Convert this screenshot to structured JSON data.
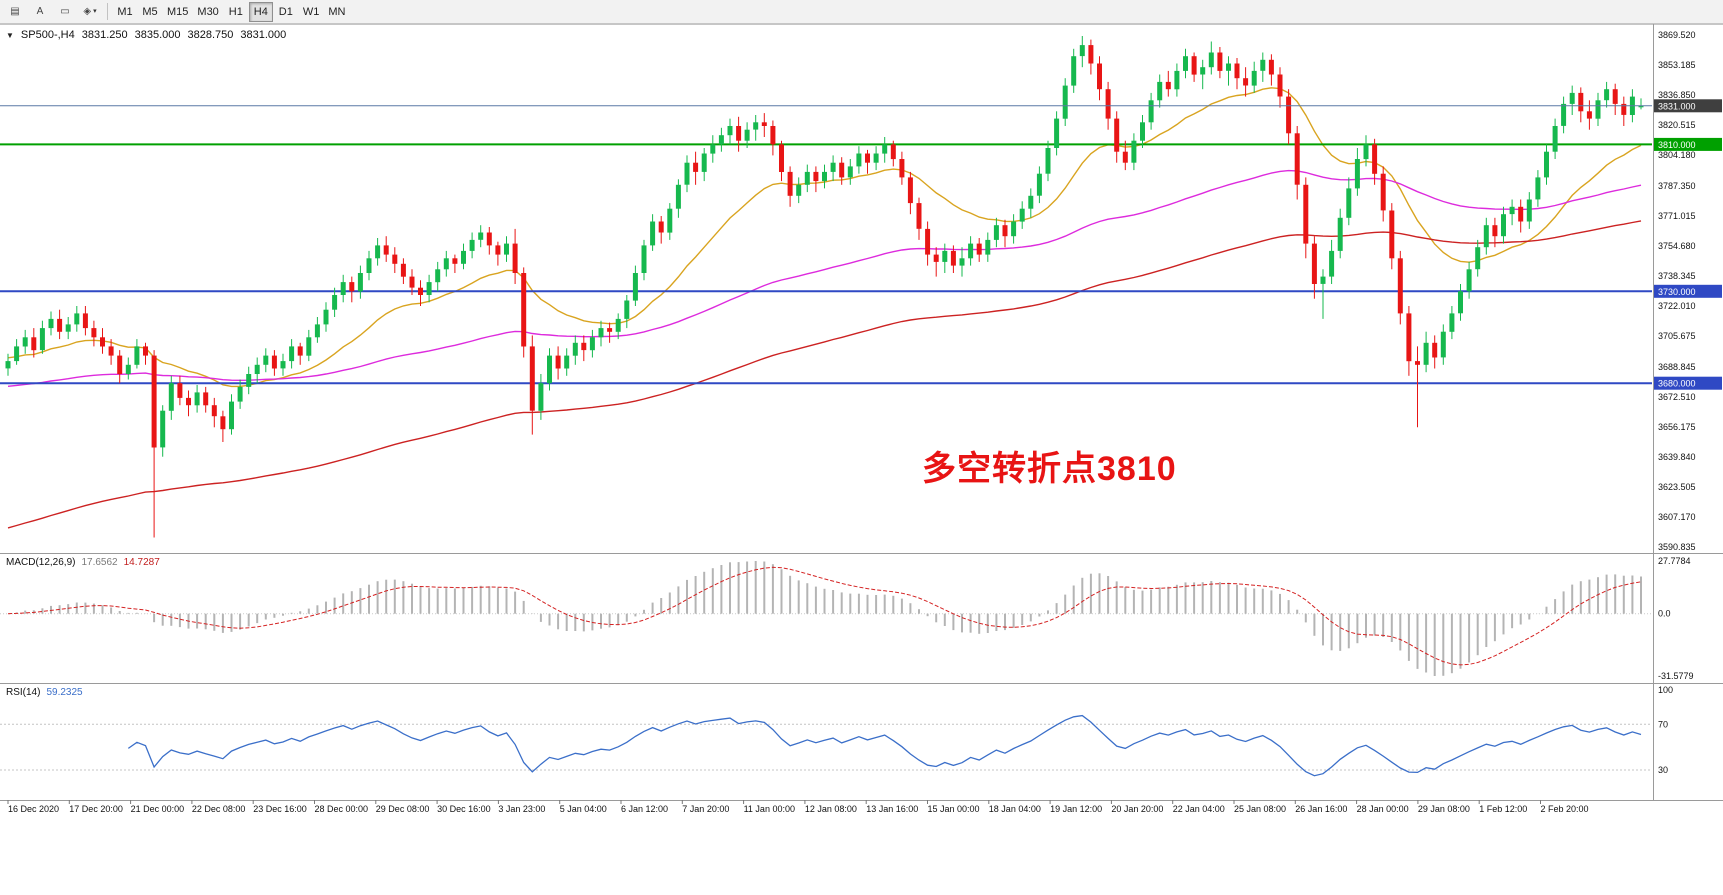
{
  "toolbar": {
    "icon_buttons": [
      {
        "name": "chart-window-icon",
        "glyph": "▤"
      },
      {
        "name": "text-tool-icon",
        "glyph": "A"
      },
      {
        "name": "frame-tool-icon",
        "glyph": "▭"
      },
      {
        "name": "objects-tool-icon",
        "glyph": "◈",
        "arrow": true
      }
    ],
    "dropdown_arrow": "▾",
    "timeframes": [
      "M1",
      "M5",
      "M15",
      "M30",
      "H1",
      "H4",
      "D1",
      "W1",
      "MN"
    ],
    "active_timeframe": "H4"
  },
  "chart_header": {
    "marker": "▼",
    "symbol_period": "SP500-,H4",
    "open": "3831.250",
    "high": "3835.000",
    "low": "3828.750",
    "close": "3831.000"
  },
  "annotation": {
    "text": "多空转折点3810",
    "color": "#e81414"
  },
  "chart_data": {
    "type": "candlestick",
    "symbol": "SP500-",
    "timeframe": "H4",
    "up_color": "#16b84e",
    "down_color": "#e81515",
    "price_axis_labels": [
      "3869.520",
      "3853.185",
      "3836.850",
      "3820.515",
      "3804.180",
      "3787.350",
      "3771.015",
      "3754.680",
      "3738.345",
      "3722.010",
      "3705.675",
      "3688.845",
      "3672.510",
      "3656.175",
      "3639.840",
      "3623.505",
      "3607.170",
      "3590.835"
    ],
    "price_range": {
      "axis_top_price": 3869.52,
      "axis_bottom_price": 3590.835
    },
    "bid": {
      "label": "3831.000",
      "price": 3831.0,
      "line_color": "#5a79a5",
      "badge_color": "#3f3f3f"
    },
    "hlines": [
      {
        "label": "3810.000",
        "price": 3810.0,
        "color": "#00a000",
        "width": 2
      },
      {
        "label": "3730.000",
        "price": 3730.0,
        "color": "#2f49c4",
        "width": 2
      },
      {
        "label": "3680.000",
        "price": 3680.0,
        "color": "#2f49c4",
        "width": 2
      }
    ],
    "moving_averages": [
      {
        "name": "ma-fast-orange",
        "period": 20,
        "seed": 3694,
        "color": "#d9a420"
      },
      {
        "name": "ma-medium-magenta",
        "period": 90,
        "seed": 3678,
        "color": "#dd2bdd"
      },
      {
        "name": "ma-slow-red",
        "period": 150,
        "seed": 3600,
        "color": "#cc2222"
      }
    ],
    "candles": [
      [
        3688,
        3696,
        3684,
        3692
      ],
      [
        3692,
        3704,
        3690,
        3700
      ],
      [
        3700,
        3709,
        3696,
        3705
      ],
      [
        3705,
        3710,
        3694,
        3698
      ],
      [
        3698,
        3714,
        3696,
        3710
      ],
      [
        3710,
        3719,
        3706,
        3715
      ],
      [
        3715,
        3720,
        3704,
        3708
      ],
      [
        3708,
        3716,
        3704,
        3712
      ],
      [
        3712,
        3722,
        3708,
        3718
      ],
      [
        3718,
        3722,
        3706,
        3710
      ],
      [
        3710,
        3714,
        3700,
        3705
      ],
      [
        3705,
        3710,
        3696,
        3700
      ],
      [
        3700,
        3704,
        3690,
        3695
      ],
      [
        3695,
        3698,
        3680,
        3685
      ],
      [
        3685,
        3694,
        3682,
        3690
      ],
      [
        3690,
        3704,
        3688,
        3700
      ],
      [
        3700,
        3702,
        3690,
        3695
      ],
      [
        3695,
        3698,
        3596,
        3645
      ],
      [
        3645,
        3668,
        3640,
        3665
      ],
      [
        3665,
        3684,
        3660,
        3680
      ],
      [
        3680,
        3684,
        3668,
        3672
      ],
      [
        3672,
        3676,
        3662,
        3668
      ],
      [
        3668,
        3679,
        3664,
        3675
      ],
      [
        3675,
        3678,
        3664,
        3668
      ],
      [
        3668,
        3672,
        3656,
        3662
      ],
      [
        3662,
        3665,
        3648,
        3655
      ],
      [
        3655,
        3674,
        3652,
        3670
      ],
      [
        3670,
        3682,
        3666,
        3678
      ],
      [
        3678,
        3689,
        3674,
        3685
      ],
      [
        3685,
        3694,
        3680,
        3690
      ],
      [
        3690,
        3699,
        3686,
        3695
      ],
      [
        3695,
        3698,
        3684,
        3688
      ],
      [
        3688,
        3696,
        3684,
        3692
      ],
      [
        3692,
        3704,
        3688,
        3700
      ],
      [
        3700,
        3702,
        3690,
        3695
      ],
      [
        3695,
        3709,
        3692,
        3705
      ],
      [
        3705,
        3716,
        3702,
        3712
      ],
      [
        3712,
        3724,
        3708,
        3720
      ],
      [
        3720,
        3732,
        3716,
        3728
      ],
      [
        3728,
        3739,
        3724,
        3735
      ],
      [
        3735,
        3738,
        3724,
        3730
      ],
      [
        3730,
        3744,
        3726,
        3740
      ],
      [
        3740,
        3752,
        3736,
        3748
      ],
      [
        3748,
        3759,
        3744,
        3755
      ],
      [
        3755,
        3760,
        3746,
        3750
      ],
      [
        3750,
        3754,
        3740,
        3745
      ],
      [
        3745,
        3748,
        3734,
        3738
      ],
      [
        3738,
        3742,
        3728,
        3732
      ],
      [
        3732,
        3736,
        3722,
        3728
      ],
      [
        3728,
        3739,
        3724,
        3735
      ],
      [
        3735,
        3746,
        3730,
        3742
      ],
      [
        3742,
        3752,
        3738,
        3748
      ],
      [
        3748,
        3750,
        3740,
        3745
      ],
      [
        3745,
        3756,
        3742,
        3752
      ],
      [
        3752,
        3762,
        3748,
        3758
      ],
      [
        3758,
        3766,
        3754,
        3762
      ],
      [
        3762,
        3765,
        3750,
        3755
      ],
      [
        3755,
        3757,
        3744,
        3750
      ],
      [
        3750,
        3760,
        3746,
        3756
      ],
      [
        3756,
        3764,
        3734,
        3740
      ],
      [
        3740,
        3743,
        3694,
        3700
      ],
      [
        3700,
        3706,
        3652,
        3665
      ],
      [
        3665,
        3685,
        3660,
        3680
      ],
      [
        3680,
        3699,
        3676,
        3695
      ],
      [
        3695,
        3700,
        3682,
        3688
      ],
      [
        3688,
        3699,
        3684,
        3695
      ],
      [
        3695,
        3706,
        3690,
        3702
      ],
      [
        3702,
        3706,
        3692,
        3698
      ],
      [
        3698,
        3709,
        3694,
        3705
      ],
      [
        3705,
        3714,
        3700,
        3710
      ],
      [
        3710,
        3713,
        3702,
        3708
      ],
      [
        3708,
        3718,
        3704,
        3715
      ],
      [
        3715,
        3728,
        3710,
        3725
      ],
      [
        3725,
        3744,
        3722,
        3740
      ],
      [
        3740,
        3758,
        3736,
        3755
      ],
      [
        3755,
        3772,
        3752,
        3768
      ],
      [
        3768,
        3771,
        3756,
        3762
      ],
      [
        3762,
        3778,
        3758,
        3775
      ],
      [
        3775,
        3791,
        3770,
        3788
      ],
      [
        3788,
        3804,
        3784,
        3800
      ],
      [
        3800,
        3806,
        3788,
        3795
      ],
      [
        3795,
        3808,
        3790,
        3805
      ],
      [
        3805,
        3815,
        3800,
        3810
      ],
      [
        3810,
        3819,
        3806,
        3815
      ],
      [
        3815,
        3824,
        3810,
        3820
      ],
      [
        3820,
        3825,
        3806,
        3812
      ],
      [
        3812,
        3822,
        3808,
        3818
      ],
      [
        3818,
        3826,
        3812,
        3822
      ],
      [
        3822,
        3827,
        3814,
        3820
      ],
      [
        3820,
        3823,
        3804,
        3810
      ],
      [
        3810,
        3812,
        3790,
        3795
      ],
      [
        3795,
        3798,
        3776,
        3782
      ],
      [
        3782,
        3792,
        3778,
        3788
      ],
      [
        3788,
        3799,
        3784,
        3795
      ],
      [
        3795,
        3798,
        3784,
        3790
      ],
      [
        3790,
        3799,
        3786,
        3795
      ],
      [
        3795,
        3804,
        3790,
        3800
      ],
      [
        3800,
        3803,
        3788,
        3792
      ],
      [
        3792,
        3802,
        3788,
        3798
      ],
      [
        3798,
        3809,
        3794,
        3805
      ],
      [
        3805,
        3807,
        3794,
        3800
      ],
      [
        3800,
        3809,
        3796,
        3805
      ],
      [
        3805,
        3814,
        3800,
        3810
      ],
      [
        3810,
        3812,
        3798,
        3802
      ],
      [
        3802,
        3806,
        3788,
        3792
      ],
      [
        3792,
        3795,
        3772,
        3778
      ],
      [
        3778,
        3781,
        3758,
        3764
      ],
      [
        3764,
        3768,
        3744,
        3750
      ],
      [
        3750,
        3754,
        3738,
        3746
      ],
      [
        3746,
        3756,
        3740,
        3752
      ],
      [
        3752,
        3755,
        3740,
        3744
      ],
      [
        3744,
        3754,
        3738,
        3748
      ],
      [
        3748,
        3760,
        3744,
        3756
      ],
      [
        3756,
        3759,
        3746,
        3750
      ],
      [
        3750,
        3762,
        3746,
        3758
      ],
      [
        3758,
        3770,
        3754,
        3766
      ],
      [
        3766,
        3769,
        3754,
        3760
      ],
      [
        3760,
        3772,
        3756,
        3768
      ],
      [
        3768,
        3779,
        3764,
        3775
      ],
      [
        3775,
        3786,
        3770,
        3782
      ],
      [
        3782,
        3798,
        3778,
        3794
      ],
      [
        3794,
        3812,
        3790,
        3808
      ],
      [
        3808,
        3828,
        3804,
        3824
      ],
      [
        3824,
        3846,
        3820,
        3842
      ],
      [
        3842,
        3862,
        3838,
        3858
      ],
      [
        3858,
        3869,
        3852,
        3864
      ],
      [
        3864,
        3867,
        3848,
        3854
      ],
      [
        3854,
        3858,
        3834,
        3840
      ],
      [
        3840,
        3844,
        3818,
        3824
      ],
      [
        3824,
        3828,
        3800,
        3806
      ],
      [
        3806,
        3812,
        3796,
        3800
      ],
      [
        3800,
        3816,
        3796,
        3812
      ],
      [
        3812,
        3826,
        3808,
        3822
      ],
      [
        3822,
        3838,
        3818,
        3834
      ],
      [
        3834,
        3848,
        3830,
        3844
      ],
      [
        3844,
        3850,
        3836,
        3840
      ],
      [
        3840,
        3854,
        3836,
        3850
      ],
      [
        3850,
        3862,
        3846,
        3858
      ],
      [
        3858,
        3860,
        3844,
        3848
      ],
      [
        3848,
        3856,
        3840,
        3852
      ],
      [
        3852,
        3866,
        3848,
        3860
      ],
      [
        3860,
        3863,
        3846,
        3850
      ],
      [
        3850,
        3858,
        3842,
        3854
      ],
      [
        3854,
        3857,
        3840,
        3846
      ],
      [
        3846,
        3852,
        3836,
        3842
      ],
      [
        3842,
        3855,
        3838,
        3850
      ],
      [
        3850,
        3860,
        3844,
        3856
      ],
      [
        3856,
        3859,
        3842,
        3848
      ],
      [
        3848,
        3852,
        3830,
        3836
      ],
      [
        3836,
        3840,
        3810,
        3816
      ],
      [
        3816,
        3820,
        3780,
        3788
      ],
      [
        3788,
        3792,
        3748,
        3756
      ],
      [
        3756,
        3760,
        3726,
        3734
      ],
      [
        3734,
        3742,
        3715,
        3738
      ],
      [
        3738,
        3758,
        3734,
        3752
      ],
      [
        3752,
        3775,
        3748,
        3770
      ],
      [
        3770,
        3792,
        3766,
        3786
      ],
      [
        3786,
        3808,
        3782,
        3802
      ],
      [
        3802,
        3815,
        3798,
        3810
      ],
      [
        3810,
        3813,
        3788,
        3794
      ],
      [
        3794,
        3798,
        3768,
        3774
      ],
      [
        3774,
        3778,
        3742,
        3748
      ],
      [
        3748,
        3752,
        3712,
        3718
      ],
      [
        3718,
        3722,
        3684,
        3692
      ],
      [
        3692,
        3700,
        3656,
        3690
      ],
      [
        3690,
        3708,
        3686,
        3702
      ],
      [
        3702,
        3706,
        3688,
        3694
      ],
      [
        3694,
        3712,
        3690,
        3708
      ],
      [
        3708,
        3722,
        3704,
        3718
      ],
      [
        3718,
        3734,
        3714,
        3730
      ],
      [
        3730,
        3746,
        3726,
        3742
      ],
      [
        3742,
        3758,
        3738,
        3754
      ],
      [
        3754,
        3770,
        3750,
        3766
      ],
      [
        3766,
        3770,
        3754,
        3760
      ],
      [
        3760,
        3776,
        3756,
        3772
      ],
      [
        3772,
        3780,
        3766,
        3776
      ],
      [
        3776,
        3780,
        3762,
        3768
      ],
      [
        3768,
        3784,
        3764,
        3780
      ],
      [
        3780,
        3796,
        3776,
        3792
      ],
      [
        3792,
        3810,
        3788,
        3806
      ],
      [
        3806,
        3824,
        3802,
        3820
      ],
      [
        3820,
        3836,
        3816,
        3832
      ],
      [
        3832,
        3842,
        3826,
        3838
      ],
      [
        3838,
        3841,
        3822,
        3828
      ],
      [
        3828,
        3834,
        3818,
        3824
      ],
      [
        3824,
        3838,
        3820,
        3834
      ],
      [
        3834,
        3844,
        3830,
        3840
      ],
      [
        3840,
        3843,
        3826,
        3832
      ],
      [
        3832,
        3836,
        3820,
        3826
      ],
      [
        3826,
        3840,
        3822,
        3836
      ],
      [
        3831,
        3835,
        3829,
        3831
      ]
    ],
    "macd": {
      "title": "MACD(12,26,9)",
      "main": "17.6562",
      "signal": "14.7287",
      "fast": 12,
      "slow": 26,
      "smooth": 9,
      "axis_top": "27.7784",
      "axis_zero": "0.0",
      "axis_bottom": "-31.5779",
      "hist_color": "#b4b4b4",
      "signal_color": "#d42222"
    },
    "rsi": {
      "title": "RSI(14)",
      "value": "59.2325",
      "period": 14,
      "axis": [
        "100",
        "70",
        "30"
      ],
      "upper": 70,
      "lower": 30,
      "line_color": "#3b6fc9",
      "level_color": "#c4c4c4"
    },
    "time_labels": [
      "16 Dec 2020",
      "17 Dec 20:00",
      "21 Dec 00:00",
      "22 Dec 08:00",
      "23 Dec 16:00",
      "28 Dec 00:00",
      "29 Dec 08:00",
      "30 Dec 16:00",
      "3 Jan 23:00",
      "5 Jan 04:00",
      "6 Jan 12:00",
      "7 Jan 20:00",
      "11 Jan 00:00",
      "12 Jan 08:00",
      "13 Jan 16:00",
      "15 Jan 00:00",
      "18 Jan 04:00",
      "19 Jan 12:00",
      "20 Jan 20:00",
      "22 Jan 04:00",
      "25 Jan 08:00",
      "26 Jan 16:00",
      "28 Jan 00:00",
      "29 Jan 08:00",
      "1 Feb 12:00",
      "2 Feb 20:00"
    ]
  }
}
